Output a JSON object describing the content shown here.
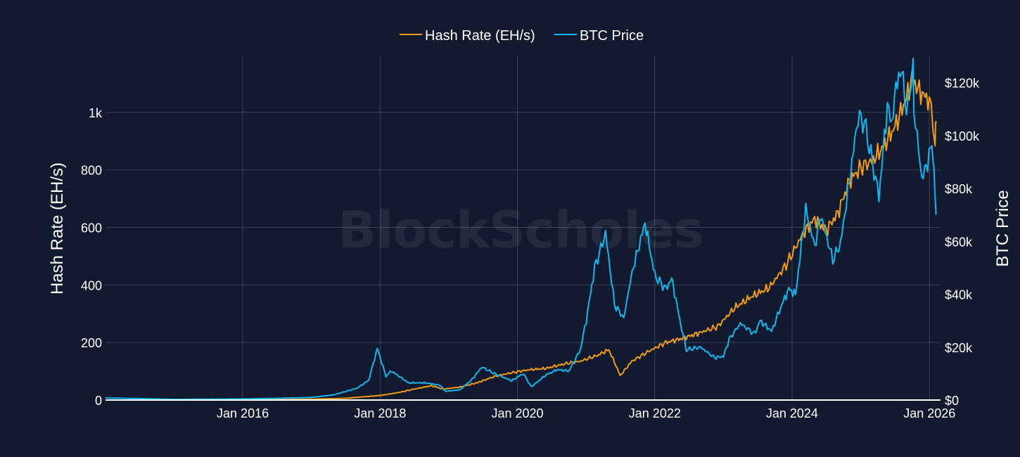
{
  "colors": {
    "background": "#111a2e",
    "grid": "#3a4458",
    "hash_rate": "#f39c12",
    "btc_price": "#12b6f0",
    "axis_line": "#ffffff"
  },
  "watermark": "BlockScholes",
  "chart_data": {
    "type": "line",
    "legend": {
      "placement": "top-center",
      "entries": [
        "Hash Rate (EH/s)",
        "BTC Price"
      ]
    },
    "grid": true,
    "x_axis": {
      "range": [
        "2014-01-01",
        "2026-03-01"
      ],
      "ticks": [
        "2016-01-01",
        "2018-01-01",
        "2020-01-01",
        "2022-01-01",
        "2024-01-01",
        "2026-01-01"
      ],
      "tick_labels": [
        "Jan 2016",
        "Jan 2018",
        "Jan 2020",
        "Jan 2022",
        "Jan 2024",
        "Jan 2026"
      ]
    },
    "y_left": {
      "title": "Hash Rate (EH/s)",
      "range": [
        0,
        1195
      ],
      "ticks": [
        0,
        200,
        400,
        600,
        800,
        1000
      ],
      "tick_labels": [
        "0",
        "200",
        "400",
        "600",
        "800",
        "1k"
      ]
    },
    "y_right": {
      "title": "BTC Price",
      "range": [
        0,
        130000
      ],
      "ticks": [
        0,
        20000,
        40000,
        60000,
        80000,
        100000,
        120000
      ],
      "tick_labels": [
        "$0",
        "$20k",
        "$40k",
        "$60k",
        "$80k",
        "$100k",
        "$120k"
      ]
    },
    "series": [
      {
        "name": "Hash Rate (EH/s)",
        "axis": "left",
        "points": [
          [
            "2014-01-01",
            0.01
          ],
          [
            "2015-01-01",
            0.3
          ],
          [
            "2016-01-01",
            0.8
          ],
          [
            "2016-07-01",
            1.5
          ],
          [
            "2017-01-01",
            3
          ],
          [
            "2017-07-01",
            6
          ],
          [
            "2018-01-01",
            16
          ],
          [
            "2018-04-01",
            25
          ],
          [
            "2018-07-01",
            38
          ],
          [
            "2018-10-01",
            50
          ],
          [
            "2018-12-01",
            38
          ],
          [
            "2019-03-01",
            45
          ],
          [
            "2019-06-01",
            60
          ],
          [
            "2019-09-01",
            82
          ],
          [
            "2019-12-01",
            95
          ],
          [
            "2020-03-01",
            105
          ],
          [
            "2020-06-01",
            110
          ],
          [
            "2020-09-01",
            125
          ],
          [
            "2020-12-01",
            135
          ],
          [
            "2021-03-01",
            155
          ],
          [
            "2021-05-01",
            175
          ],
          [
            "2021-06-15",
            110
          ],
          [
            "2021-07-01",
            85
          ],
          [
            "2021-09-01",
            135
          ],
          [
            "2021-12-01",
            170
          ],
          [
            "2022-03-01",
            200
          ],
          [
            "2022-06-01",
            215
          ],
          [
            "2022-09-01",
            235
          ],
          [
            "2022-12-01",
            255
          ],
          [
            "2023-03-01",
            320
          ],
          [
            "2023-06-01",
            360
          ],
          [
            "2023-09-01",
            390
          ],
          [
            "2023-12-01",
            470
          ],
          [
            "2024-03-01",
            580
          ],
          [
            "2024-05-01",
            630
          ],
          [
            "2024-07-01",
            590
          ],
          [
            "2024-09-01",
            650
          ],
          [
            "2024-11-01",
            760
          ],
          [
            "2025-01-01",
            810
          ],
          [
            "2025-03-01",
            830
          ],
          [
            "2025-05-01",
            880
          ],
          [
            "2025-07-01",
            950
          ],
          [
            "2025-09-01",
            1050
          ],
          [
            "2025-10-01",
            1120
          ],
          [
            "2025-11-01",
            1080
          ],
          [
            "2025-12-01",
            1060
          ],
          [
            "2026-01-01",
            1040
          ],
          [
            "2026-01-20",
            950
          ],
          [
            "2026-01-31",
            890
          ],
          [
            "2026-02-05",
            970
          ]
        ]
      },
      {
        "name": "BTC Price",
        "axis": "right",
        "points": [
          [
            "2014-01-01",
            800
          ],
          [
            "2014-06-01",
            600
          ],
          [
            "2015-01-01",
            250
          ],
          [
            "2016-01-01",
            430
          ],
          [
            "2016-07-01",
            650
          ],
          [
            "2017-01-01",
            1000
          ],
          [
            "2017-05-01",
            2000
          ],
          [
            "2017-09-01",
            4500
          ],
          [
            "2017-11-01",
            7500
          ],
          [
            "2017-12-17",
            19500
          ],
          [
            "2018-02-01",
            9000
          ],
          [
            "2018-03-01",
            11000
          ],
          [
            "2018-06-01",
            6500
          ],
          [
            "2018-09-01",
            6500
          ],
          [
            "2018-11-15",
            5600
          ],
          [
            "2018-12-15",
            3300
          ],
          [
            "2019-03-01",
            3900
          ],
          [
            "2019-05-01",
            7500
          ],
          [
            "2019-06-26",
            12500
          ],
          [
            "2019-09-01",
            10000
          ],
          [
            "2019-12-01",
            7300
          ],
          [
            "2020-02-01",
            10000
          ],
          [
            "2020-03-15",
            5000
          ],
          [
            "2020-06-01",
            9500
          ],
          [
            "2020-08-01",
            11500
          ],
          [
            "2020-10-01",
            11000
          ],
          [
            "2020-12-01",
            19000
          ],
          [
            "2021-01-01",
            30000
          ],
          [
            "2021-02-15",
            50000
          ],
          [
            "2021-04-14",
            63000
          ],
          [
            "2021-06-01",
            36000
          ],
          [
            "2021-07-20",
            31000
          ],
          [
            "2021-09-01",
            48000
          ],
          [
            "2021-11-10",
            67000
          ],
          [
            "2022-01-01",
            47000
          ],
          [
            "2022-03-01",
            42000
          ],
          [
            "2022-04-01",
            46000
          ],
          [
            "2022-05-15",
            30000
          ],
          [
            "2022-06-18",
            19000
          ],
          [
            "2022-09-01",
            20000
          ],
          [
            "2022-11-15",
            16000
          ],
          [
            "2023-01-01",
            16500
          ],
          [
            "2023-02-01",
            23000
          ],
          [
            "2023-04-01",
            29000
          ],
          [
            "2023-06-15",
            25000
          ],
          [
            "2023-07-15",
            30000
          ],
          [
            "2023-09-15",
            26000
          ],
          [
            "2023-11-01",
            35000
          ],
          [
            "2023-12-15",
            42000
          ],
          [
            "2024-01-20",
            40000
          ],
          [
            "2024-03-14",
            72000
          ],
          [
            "2024-05-01",
            58000
          ],
          [
            "2024-06-01",
            70000
          ],
          [
            "2024-08-05",
            53000
          ],
          [
            "2024-09-15",
            59000
          ],
          [
            "2024-11-15",
            90000
          ],
          [
            "2024-12-17",
            107000
          ],
          [
            "2025-01-20",
            105000
          ],
          [
            "2025-02-15",
            96000
          ],
          [
            "2025-04-07",
            77000
          ],
          [
            "2025-05-22",
            111000
          ],
          [
            "2025-06-15",
            105000
          ],
          [
            "2025-07-14",
            122000
          ],
          [
            "2025-08-14",
            123000
          ],
          [
            "2025-09-01",
            108000
          ],
          [
            "2025-10-06",
            126000
          ],
          [
            "2025-10-11",
            110000
          ],
          [
            "2025-11-21",
            84000
          ],
          [
            "2025-12-15",
            88000
          ],
          [
            "2026-01-14",
            97000
          ],
          [
            "2026-01-25",
            88000
          ],
          [
            "2026-02-05",
            70000
          ]
        ]
      }
    ]
  }
}
